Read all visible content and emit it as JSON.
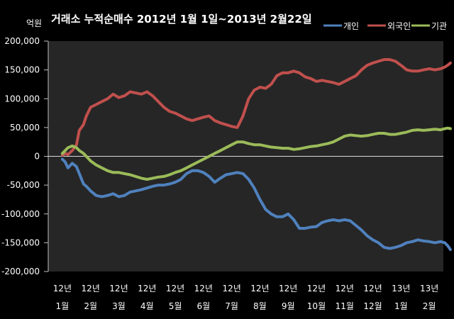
{
  "chart_data": {
    "type": "line",
    "title": "거래소 누적순매수 2012년 1월 1일~2013년 2월22일",
    "ylabel": "억원",
    "ylim": [
      -200000,
      200000
    ],
    "yticks": [
      200000,
      150000,
      100000,
      50000,
      0,
      -50000,
      -100000,
      -150000,
      -200000
    ],
    "ytick_labels": [
      "200,000",
      "150,000",
      "100,000",
      "50,000",
      "0",
      "-50,000",
      "-100,000",
      "-150,000",
      "-200,000"
    ],
    "categories": [
      [
        "12년",
        "1월"
      ],
      [
        "12년",
        "2월"
      ],
      [
        "12년",
        "3월"
      ],
      [
        "12년",
        "4월"
      ],
      [
        "12년",
        "5월"
      ],
      [
        "12년",
        "6월"
      ],
      [
        "12년",
        "7월"
      ],
      [
        "12년",
        "8월"
      ],
      [
        "12년",
        "9월"
      ],
      [
        "12년",
        "10월"
      ],
      [
        "12년",
        "11월"
      ],
      [
        "12년",
        "12월"
      ],
      [
        "13년",
        "1월"
      ],
      [
        "13년",
        "2월"
      ]
    ],
    "legend_position": "top-right",
    "grid": false,
    "series": [
      {
        "name": "개인",
        "color": "#4f81bd",
        "x": [
          0,
          0.1,
          0.2,
          0.35,
          0.5,
          0.6,
          0.75,
          0.85,
          1.0,
          1.2,
          1.4,
          1.6,
          1.8,
          2.0,
          2.2,
          2.4,
          2.6,
          2.8,
          3.0,
          3.2,
          3.4,
          3.6,
          3.8,
          4.0,
          4.2,
          4.4,
          4.6,
          4.8,
          5.0,
          5.2,
          5.4,
          5.6,
          5.8,
          6.0,
          6.2,
          6.4,
          6.6,
          6.8,
          7.0,
          7.2,
          7.4,
          7.6,
          7.8,
          8.0,
          8.2,
          8.4,
          8.6,
          8.8,
          9.0,
          9.2,
          9.4,
          9.6,
          9.8,
          10.0,
          10.2,
          10.4,
          10.6,
          10.8,
          11.0,
          11.2,
          11.4,
          11.6,
          11.8,
          12.0,
          12.2,
          12.4,
          12.6,
          12.8,
          13.0,
          13.2,
          13.4,
          13.55,
          13.65,
          13.75
        ],
        "values": [
          -5000,
          -10000,
          -20000,
          -12000,
          -18000,
          -30000,
          -48000,
          -52000,
          -60000,
          -68000,
          -70000,
          -68000,
          -65000,
          -70000,
          -68000,
          -62000,
          -60000,
          -58000,
          -55000,
          -52000,
          -50000,
          -50000,
          -48000,
          -45000,
          -40000,
          -30000,
          -25000,
          -25000,
          -28000,
          -35000,
          -45000,
          -38000,
          -32000,
          -30000,
          -28000,
          -30000,
          -40000,
          -55000,
          -75000,
          -92000,
          -100000,
          -105000,
          -105000,
          -100000,
          -110000,
          -125000,
          -125000,
          -123000,
          -122000,
          -115000,
          -112000,
          -110000,
          -112000,
          -110000,
          -112000,
          -120000,
          -128000,
          -138000,
          -145000,
          -150000,
          -158000,
          -160000,
          -158000,
          -155000,
          -150000,
          -148000,
          -145000,
          -147000,
          -148000,
          -150000,
          -148000,
          -150000,
          -155000,
          -162000
        ]
      },
      {
        "name": "외국인",
        "color": "#c0504d",
        "x": [
          0,
          0.1,
          0.2,
          0.35,
          0.5,
          0.6,
          0.75,
          0.85,
          1.0,
          1.2,
          1.4,
          1.6,
          1.8,
          2.0,
          2.2,
          2.4,
          2.6,
          2.8,
          3.0,
          3.2,
          3.4,
          3.6,
          3.8,
          4.0,
          4.2,
          4.4,
          4.6,
          4.8,
          5.0,
          5.2,
          5.4,
          5.6,
          5.8,
          6.0,
          6.2,
          6.4,
          6.6,
          6.8,
          7.0,
          7.2,
          7.4,
          7.6,
          7.8,
          8.0,
          8.2,
          8.4,
          8.6,
          8.8,
          9.0,
          9.2,
          9.4,
          9.6,
          9.8,
          10.0,
          10.2,
          10.4,
          10.6,
          10.8,
          11.0,
          11.2,
          11.4,
          11.6,
          11.8,
          12.0,
          12.2,
          12.4,
          12.6,
          12.8,
          13.0,
          13.2,
          13.4,
          13.55,
          13.65,
          13.75
        ],
        "values": [
          2000,
          5000,
          3000,
          10000,
          20000,
          45000,
          55000,
          70000,
          85000,
          90000,
          95000,
          100000,
          108000,
          102000,
          105000,
          112000,
          110000,
          108000,
          112000,
          105000,
          95000,
          85000,
          78000,
          75000,
          70000,
          65000,
          62000,
          65000,
          68000,
          70000,
          62000,
          58000,
          55000,
          52000,
          50000,
          70000,
          100000,
          115000,
          120000,
          118000,
          125000,
          140000,
          145000,
          145000,
          148000,
          145000,
          138000,
          135000,
          130000,
          132000,
          130000,
          128000,
          125000,
          130000,
          135000,
          140000,
          150000,
          158000,
          162000,
          165000,
          168000,
          168000,
          165000,
          158000,
          150000,
          148000,
          148000,
          150000,
          152000,
          150000,
          152000,
          155000,
          158000,
          162000
        ]
      },
      {
        "name": "기관",
        "color": "#9bbb59",
        "x": [
          0,
          0.1,
          0.2,
          0.35,
          0.5,
          0.6,
          0.75,
          0.85,
          1.0,
          1.2,
          1.4,
          1.6,
          1.8,
          2.0,
          2.2,
          2.4,
          2.6,
          2.8,
          3.0,
          3.2,
          3.4,
          3.6,
          3.8,
          4.0,
          4.2,
          4.4,
          4.6,
          4.8,
          5.0,
          5.2,
          5.4,
          5.6,
          5.8,
          6.0,
          6.2,
          6.4,
          6.6,
          6.8,
          7.0,
          7.2,
          7.4,
          7.6,
          7.8,
          8.0,
          8.2,
          8.4,
          8.6,
          8.8,
          9.0,
          9.2,
          9.4,
          9.6,
          9.8,
          10.0,
          10.2,
          10.4,
          10.6,
          10.8,
          11.0,
          11.2,
          11.4,
          11.6,
          11.8,
          12.0,
          12.2,
          12.4,
          12.6,
          12.8,
          13.0,
          13.2,
          13.4,
          13.55,
          13.65,
          13.75
        ],
        "values": [
          5000,
          10000,
          15000,
          18000,
          15000,
          10000,
          5000,
          0,
          -8000,
          -15000,
          -20000,
          -25000,
          -28000,
          -28000,
          -30000,
          -32000,
          -35000,
          -38000,
          -40000,
          -38000,
          -36000,
          -35000,
          -32000,
          -28000,
          -25000,
          -20000,
          -15000,
          -10000,
          -5000,
          0,
          5000,
          10000,
          15000,
          20000,
          25000,
          25000,
          22000,
          20000,
          20000,
          18000,
          16000,
          15000,
          14000,
          14000,
          12000,
          13000,
          15000,
          17000,
          18000,
          20000,
          22000,
          25000,
          30000,
          35000,
          37000,
          36000,
          35000,
          36000,
          38000,
          40000,
          40000,
          38000,
          38000,
          40000,
          42000,
          45000,
          46000,
          45000,
          46000,
          47000,
          46000,
          48000,
          49000,
          48000
        ]
      }
    ]
  }
}
